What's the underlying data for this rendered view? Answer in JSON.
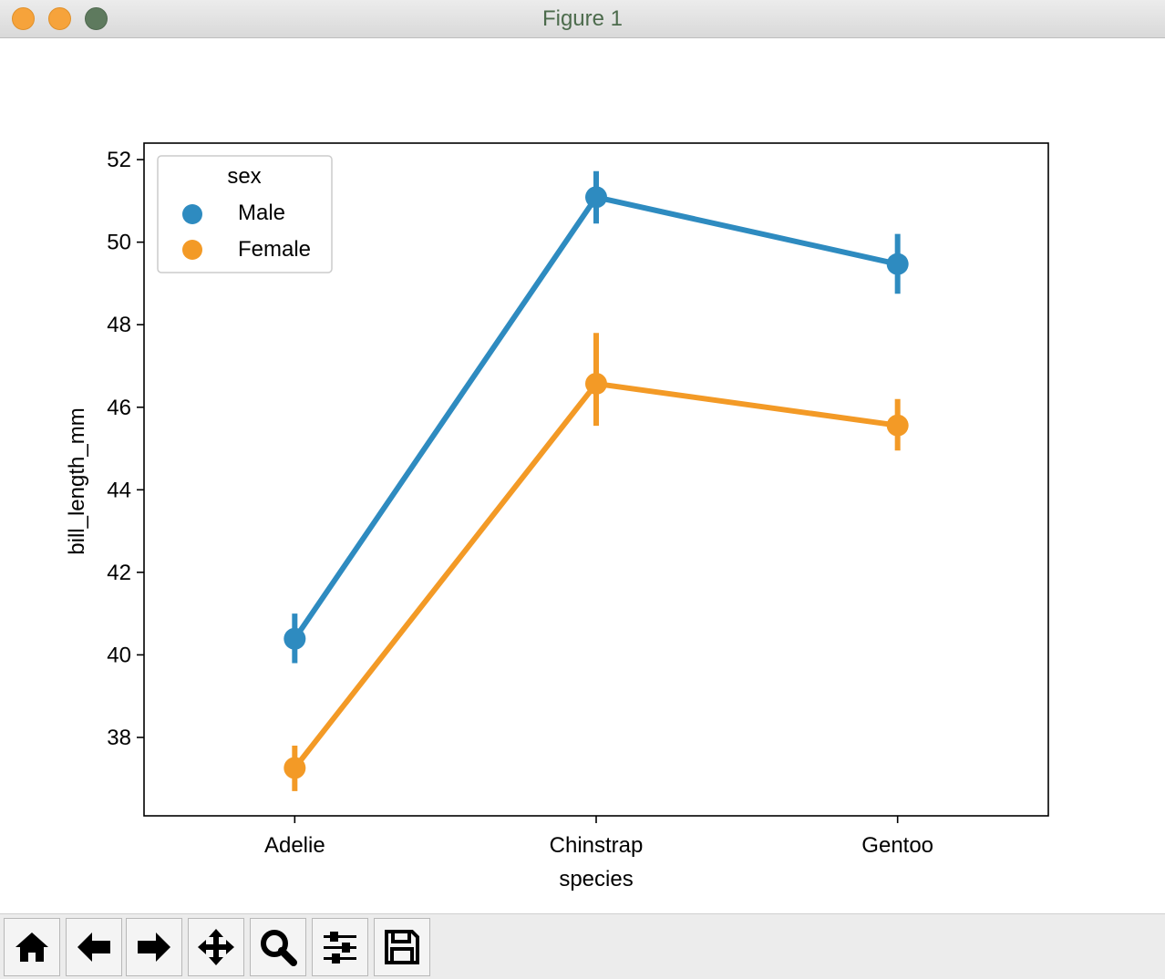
{
  "window": {
    "title": "Figure 1"
  },
  "toolbar": {
    "buttons": [
      {
        "name": "home-button",
        "icon": "home-icon"
      },
      {
        "name": "back-button",
        "icon": "arrow-left-icon"
      },
      {
        "name": "forward-button",
        "icon": "arrow-right-icon"
      },
      {
        "name": "pan-button",
        "icon": "move-icon"
      },
      {
        "name": "zoom-button",
        "icon": "magnifier-icon"
      },
      {
        "name": "configure-subplots-button",
        "icon": "sliders-icon"
      },
      {
        "name": "save-button",
        "icon": "floppy-disk-icon"
      }
    ]
  },
  "chart_data": {
    "type": "line",
    "title": "",
    "xlabel": "species",
    "ylabel": "bill_length_mm",
    "categories": [
      "Adelie",
      "Chinstrap",
      "Gentoo"
    ],
    "ylim": [
      36.1,
      52.4
    ],
    "yticks": [
      38,
      40,
      42,
      44,
      46,
      48,
      50,
      52
    ],
    "grid": false,
    "legend": {
      "title": "sex",
      "placement": "upper-left"
    },
    "series": [
      {
        "name": "Male",
        "color": "#2e8bc0",
        "values": [
          40.39,
          51.09,
          49.47
        ],
        "ci_low": [
          39.8,
          50.45,
          48.75
        ],
        "ci_high": [
          41.0,
          51.72,
          50.2
        ]
      },
      {
        "name": "Female",
        "color": "#f39a26",
        "values": [
          37.26,
          46.57,
          45.56
        ],
        "ci_low": [
          36.7,
          45.55,
          44.95
        ],
        "ci_high": [
          37.8,
          47.8,
          46.2
        ]
      }
    ]
  }
}
